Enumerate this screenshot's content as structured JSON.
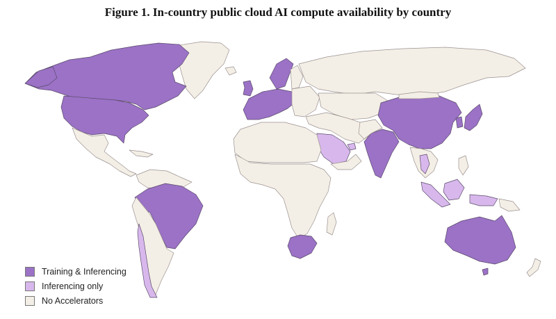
{
  "title": "Figure 1. In-country public cloud AI compute availability by country",
  "colors": {
    "training": "#9b72c6",
    "inferencing": "#d8b8ec",
    "none": "#f4efe6",
    "border": "#5a4a6a",
    "water": "#ffffff"
  },
  "legend": [
    {
      "label": "Training & Inferencing",
      "category": "training"
    },
    {
      "label": "Inferencing only",
      "category": "inferencing"
    },
    {
      "label": "No Accelerators",
      "category": "none"
    }
  ]
}
